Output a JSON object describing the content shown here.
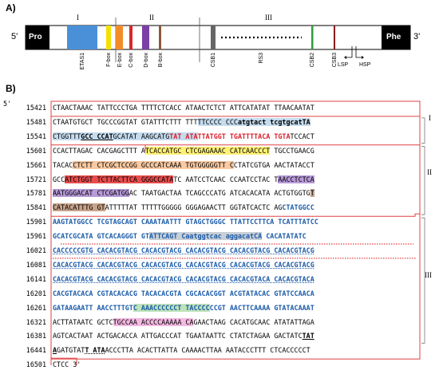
{
  "panels": {
    "a": "A)",
    "b": "B)"
  },
  "map": {
    "left_end": "5'",
    "right_end": "3'",
    "pro": "Pro",
    "phe": "Phe",
    "regions": [
      "I",
      "II",
      "III"
    ],
    "blocks": [
      {
        "label": "ETAS1",
        "color": "#4a90d9"
      },
      {
        "label": "F-box",
        "color": "#f5e000"
      },
      {
        "label": "E-box",
        "color": "#f28c28"
      },
      {
        "label": "C-box",
        "color": "#d62828"
      },
      {
        "label": "D-box",
        "color": "#7b3fa6"
      },
      {
        "label": "B-box",
        "color": "#8b5a3c"
      },
      {
        "label": "CSB1",
        "color": "#666666"
      },
      {
        "label": "RS3",
        "color": "#000000"
      },
      {
        "label": "CSB2",
        "color": "#2e9e3a"
      },
      {
        "label": "CSB3",
        "color": "#8b1a1a"
      }
    ],
    "promoters": [
      "LSP",
      "HSP"
    ]
  },
  "sequence": {
    "end5": "5'",
    "end3": "3'",
    "rows": [
      {
        "pos": "15421",
        "segs": [
          {
            "t": "CTAACTAAAC TATTCCCTGA TTTTCTCACC ATAACTCTCT ATTCATATAT TTAACAATAT"
          }
        ]
      },
      {
        "pos": "15481",
        "segs": [
          {
            "t": "CTAATGTGCT TGCCCGGTAT GTATTTCTTT TTT"
          },
          {
            "t": "TTCCCC CCC",
            "c": "hb"
          },
          {
            "t": "atgtact tcgtgcatTA",
            "c": "hb bd"
          }
        ]
      },
      {
        "pos": "15541",
        "segs": [
          {
            "t": "CTGGTTT",
            "c": "hb"
          },
          {
            "t": "GCC CCAT",
            "c": "hb bd ul"
          },
          {
            "t": "GCATAT AAGCATG",
            "c": "hb"
          },
          {
            "t": "TAT ATA",
            "c": "hb cr"
          },
          {
            "t": "TTATGGT TGATTTTACA TGTA",
            "c": "cr"
          },
          {
            "t": "TCCACT"
          }
        ]
      },
      {
        "pos": "15601",
        "segs": [
          {
            "t": "CCACTTAGAC CACGAGCTTT A"
          },
          {
            "t": "TCACCATGC CTCGAGAAAC CATCAACCCT",
            "c": "hy"
          },
          {
            "t": " TGCCTGAACG"
          }
        ]
      },
      {
        "pos": "15661",
        "segs": [
          {
            "t": "TACAC"
          },
          {
            "t": "CTCTT CTCGCTCCGG GCCCATCAAA TGTGGGGGTT C",
            "c": "ho"
          },
          {
            "t": "CTATCGTGA AACTATACCT"
          }
        ]
      },
      {
        "pos": "15721",
        "segs": [
          {
            "t": "GCC"
          },
          {
            "t": "ATCTGGT TCTTACTTCA GGGCCATA",
            "c": "hr"
          },
          {
            "t": "TC AATCCTCAAC CCAATCCTAC T"
          },
          {
            "t": "AACCTCTCA",
            "c": "hp"
          }
        ]
      },
      {
        "pos": "15781",
        "segs": [
          {
            "t": "AATGGGACAT CTCGATGG",
            "c": "hp"
          },
          {
            "t": "AC TAATGACTAA TCAGCCCATG ATCACACATA ACTGTGGTG"
          },
          {
            "t": "T",
            "c": "hbr"
          }
        ]
      },
      {
        "pos": "15841",
        "segs": [
          {
            "t": "CATACATTTG GT",
            "c": "hbr"
          },
          {
            "t": "ATTTTTAT TTTTTGGGGG GGGAGAACTT GGTATCACTC AG"
          },
          {
            "t": "CTATGGCC",
            "c": "cb"
          }
        ]
      },
      {
        "pos": "15901",
        "segs": [
          {
            "t": "AAGTATGGCC TCGTAGCAGT CAAATAATTT GTAGCTGGGC TTA",
            "c": "cb"
          },
          {
            "t": "TTCCTTCA TCATTTATCC",
            "c": "cb"
          }
        ]
      },
      {
        "pos": "15961",
        "segs": [
          {
            "t": "GCATCGCATA GTCACAGGGT GT",
            "c": "cb"
          },
          {
            "t": "ATTCAGT Caatggtcac aggacatCA",
            "c": "hgy cb"
          },
          {
            "t": " CACATATATC",
            "c": "cb"
          }
        ]
      },
      {
        "pos": "16021",
        "segs": [
          {
            "t": "CACCCCCGTG CACACGTACG CACACGTACG CACACGTACG CACACGTACG CACACGTACG",
            "c": "cb dul"
          }
        ]
      },
      {
        "pos": "16081",
        "segs": [
          {
            "t": "CACACGTACG CACACGTACG CACACGTACG CACACGTACG CACACGTACG CACACGTACG",
            "c": "cb dul"
          }
        ]
      },
      {
        "pos": "16141",
        "segs": [
          {
            "t": "CACACGTACG CACACGTACG CACACGTACG CACACGTACG CACACGTACA CACACGTACA",
            "c": "cb dul"
          }
        ]
      },
      {
        "pos": "16201",
        "segs": [
          {
            "t": "CACGTACACA CGTACACACG TACACACGTA CGCACACGGT ACGTATACAC GTATCCAACA",
            "c": "cb"
          }
        ]
      },
      {
        "pos": "16261",
        "segs": [
          {
            "t": "GATAAGAATT AACCTTTGT",
            "c": "cb"
          },
          {
            "t": "C AAACCCCCCT TACCCC",
            "c": "hg cb"
          },
          {
            "t": "CCGT AACTTCAAAA GTATACAAAT",
            "c": "cb"
          }
        ]
      },
      {
        "pos": "16321",
        "segs": [
          {
            "t": "ACTTATAATC GCTC"
          },
          {
            "t": "TGCCAA ACCCCAAAAA CA",
            "c": "hpk"
          },
          {
            "t": "GAACTAAG CACATGCAAC ATATATTAGA"
          }
        ]
      },
      {
        "pos": "16381",
        "segs": [
          {
            "t": "AGTCACTAAT ACTGACACCA ATTGACCCAT TGAATAATTC CTATCTAGAA GACTATC"
          },
          {
            "t": "TAT",
            "c": "bd ul"
          }
        ]
      },
      {
        "pos": "16441",
        "segs": [
          {
            "t": "A",
            "c": "bd ul"
          },
          {
            "t": "GATGTAT"
          },
          {
            "t": "T ATA",
            "c": "bd dul"
          },
          {
            "t": "ACCCTTA ACACTTATTA CAAAACTTAA AATACCCTTT CTCACCCCCT"
          }
        ]
      },
      {
        "pos": "16501",
        "segs": [
          {
            "t": "CTCC"
          }
        ]
      }
    ]
  }
}
